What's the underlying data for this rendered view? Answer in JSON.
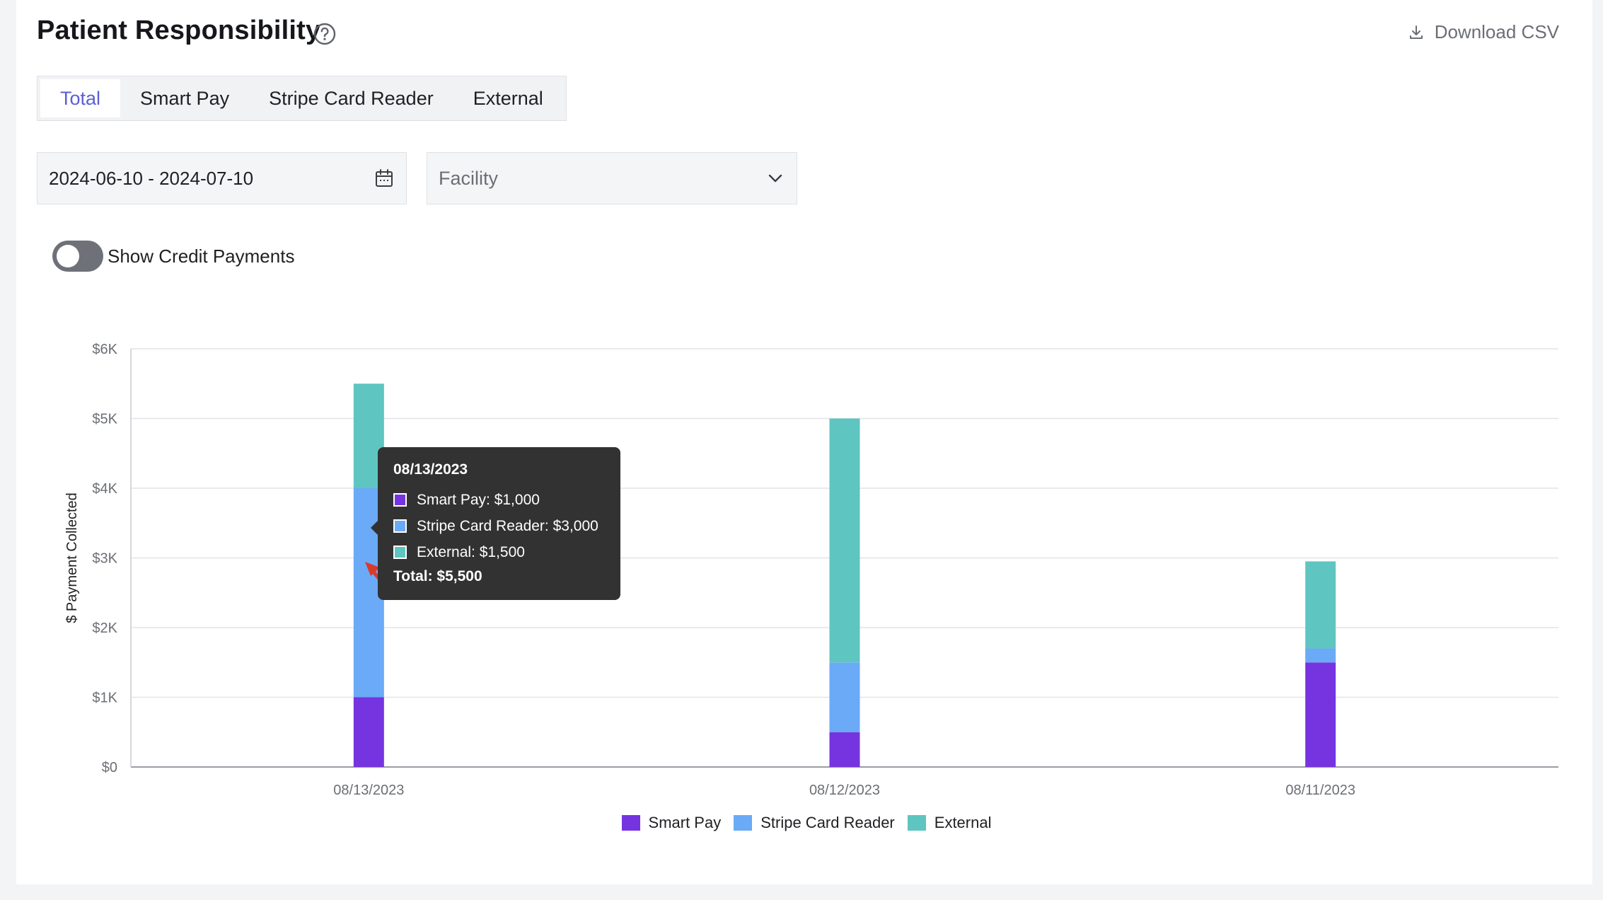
{
  "header": {
    "title": "Patient Responsibility",
    "download_label": "Download CSV"
  },
  "tabs": [
    {
      "label": "Total",
      "active": true
    },
    {
      "label": "Smart Pay",
      "active": false
    },
    {
      "label": "Stripe Card Reader",
      "active": false
    },
    {
      "label": "External",
      "active": false
    }
  ],
  "filters": {
    "date_range": "2024-06-10 - 2024-07-10",
    "facility_placeholder": "Facility"
  },
  "toggle": {
    "label": "Show Credit Payments",
    "on": false
  },
  "colors": {
    "smart_pay": "#7634e0",
    "stripe": "#6aaaf7",
    "external": "#5ec5c1",
    "accent": "#5b5fd6"
  },
  "tooltip": {
    "date": "08/13/2023",
    "rows": [
      {
        "text": "Smart Pay: $1,000"
      },
      {
        "text": "Stripe Card Reader: $3,000"
      },
      {
        "text": "External: $1,500"
      }
    ],
    "total": "Total: $5,500"
  },
  "chart_data": {
    "type": "bar",
    "stacked": true,
    "categories": [
      "08/13/2023",
      "08/12/2023",
      "08/11/2023"
    ],
    "series": [
      {
        "name": "Smart Pay",
        "values": [
          1000,
          500,
          1500
        ]
      },
      {
        "name": "Stripe Card Reader",
        "values": [
          3000,
          1000,
          200
        ]
      },
      {
        "name": "External",
        "values": [
          1500,
          3500,
          1250
        ]
      }
    ],
    "ylabel": "$ Payment Collected",
    "ylim": [
      0,
      6000
    ],
    "yticks": [
      "$0",
      "$1K",
      "$2K",
      "$3K",
      "$4K",
      "$5K",
      "$6K"
    ],
    "grid": true,
    "legend": "bottom-center"
  }
}
